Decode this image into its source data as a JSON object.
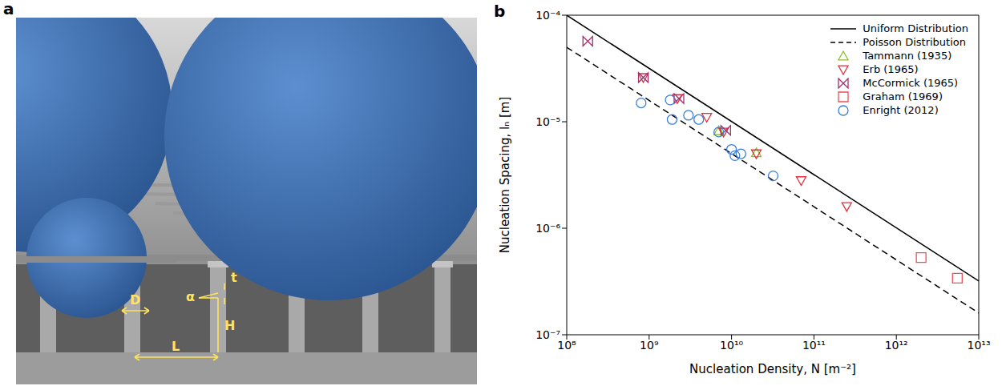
{
  "panel_a": {
    "label": "a",
    "annotations": [
      "D",
      "α",
      "t",
      "H",
      "L"
    ]
  },
  "chart_data": {
    "type": "scatter",
    "panel": "b",
    "xlabel": "Nucleation Density, N [m⁻²]",
    "ylabel": "Nucleation Spacing, lₙ [m]",
    "log": true,
    "grid": false,
    "legend": "upper right",
    "xlim": [
      100000000.0,
      10000000000000.0
    ],
    "ylim": [
      1e-07,
      0.0001
    ],
    "xticks": [
      {
        "value": 100000000.0,
        "label": "10⁸"
      },
      {
        "value": 1000000000.0,
        "label": "10⁹"
      },
      {
        "value": 10000000000.0,
        "label": "10¹⁰"
      },
      {
        "value": 100000000000.0,
        "label": "10¹¹"
      },
      {
        "value": 1000000000000.0,
        "label": "10¹²"
      },
      {
        "value": 10000000000000.0,
        "label": "10¹³"
      }
    ],
    "yticks": [
      {
        "value": 1e-07,
        "label": "10⁻⁷"
      },
      {
        "value": 1e-06,
        "label": "10⁻⁶"
      },
      {
        "value": 1e-05,
        "label": "10⁻⁵"
      },
      {
        "value": 0.0001,
        "label": "10⁻⁴"
      }
    ],
    "series": [
      {
        "name": "Uniform Distribution",
        "type": "line",
        "line_style": "solid",
        "color": "#000000",
        "x": [
          100000000.0,
          10000000000000.0
        ],
        "values": [
          0.0001,
          3.2e-07
        ]
      },
      {
        "name": "Poisson Distribution",
        "type": "line",
        "line_style": "dashed",
        "color": "#000000",
        "x": [
          100000000.0,
          10000000000000.0
        ],
        "values": [
          5e-05,
          1.6e-07
        ]
      },
      {
        "name": "Tammann (1935)",
        "type": "scatter",
        "marker": "triangle-up",
        "color": "#8fbf2a",
        "x": [
          7000000000.0,
          20000000000.0
        ],
        "values": [
          8.2e-06,
          5.1e-06
        ]
      },
      {
        "name": "Erb (1965)",
        "type": "scatter",
        "marker": "triangle-down",
        "color": "#e0303a",
        "x": [
          850000000.0,
          2200000000.0,
          5000000000.0,
          8000000000.0,
          20000000000.0,
          70000000000.0,
          250000000000.0
        ],
        "values": [
          2.6e-05,
          1.65e-05,
          1.1e-05,
          8e-06,
          5e-06,
          2.8e-06,
          1.6e-06
        ]
      },
      {
        "name": "McCormick (1965)",
        "type": "scatter",
        "marker": "bowtie",
        "color": "#a0306e",
        "x": [
          180000000.0,
          850000000.0,
          2300000000.0,
          8500000000.0
        ],
        "values": [
          5.7e-05,
          2.6e-05,
          1.65e-05,
          8.3e-06
        ]
      },
      {
        "name": "Graham (1969)",
        "type": "scatter",
        "marker": "square",
        "color": "#e8505a",
        "x": [
          2000000000000.0,
          5500000000000.0
        ],
        "values": [
          5.3e-07,
          3.4e-07
        ]
      },
      {
        "name": "Enright (2012)",
        "type": "scatter",
        "marker": "circle",
        "color": "#3b7fd9",
        "x": [
          800000000.0,
          1800000000.0,
          1900000000.0,
          3000000000.0,
          4000000000.0,
          7000000000.0,
          10000000000.0,
          11000000000.0,
          13000000000.0,
          32000000000.0
        ],
        "values": [
          1.5e-05,
          1.6e-05,
          1.05e-05,
          1.15e-05,
          1.05e-05,
          8e-06,
          5.5e-06,
          4.8e-06,
          5e-06,
          3.1e-06
        ]
      }
    ]
  }
}
